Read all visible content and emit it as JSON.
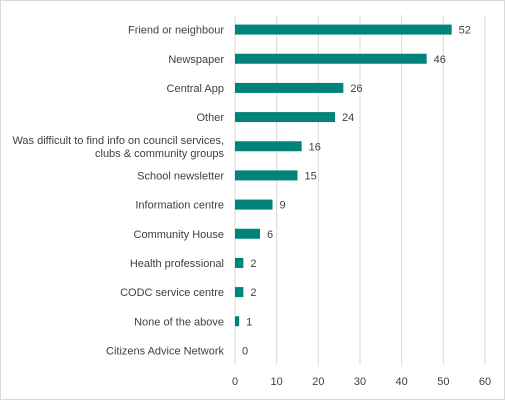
{
  "chart_data": {
    "type": "bar",
    "orientation": "horizontal",
    "categories": [
      "Friend or neighbour",
      "Newspaper",
      "Central App",
      "Other",
      [
        "Was difficult to find info on council services,",
        "clubs & community groups"
      ],
      "School newsletter",
      "Information centre",
      "Community House",
      "Health professional",
      "CODC service centre",
      "None of the above",
      "Citizens Advice Network"
    ],
    "values": [
      52,
      46,
      26,
      24,
      16,
      15,
      9,
      6,
      2,
      2,
      1,
      0
    ],
    "xlim": [
      0,
      60
    ],
    "xticks": [
      0,
      10,
      20,
      30,
      40,
      50,
      60
    ],
    "grid": "vertical",
    "legend": "none",
    "bar_color": "#00837B",
    "grid_color": "#d9d9d9",
    "text_color": "#404040"
  }
}
